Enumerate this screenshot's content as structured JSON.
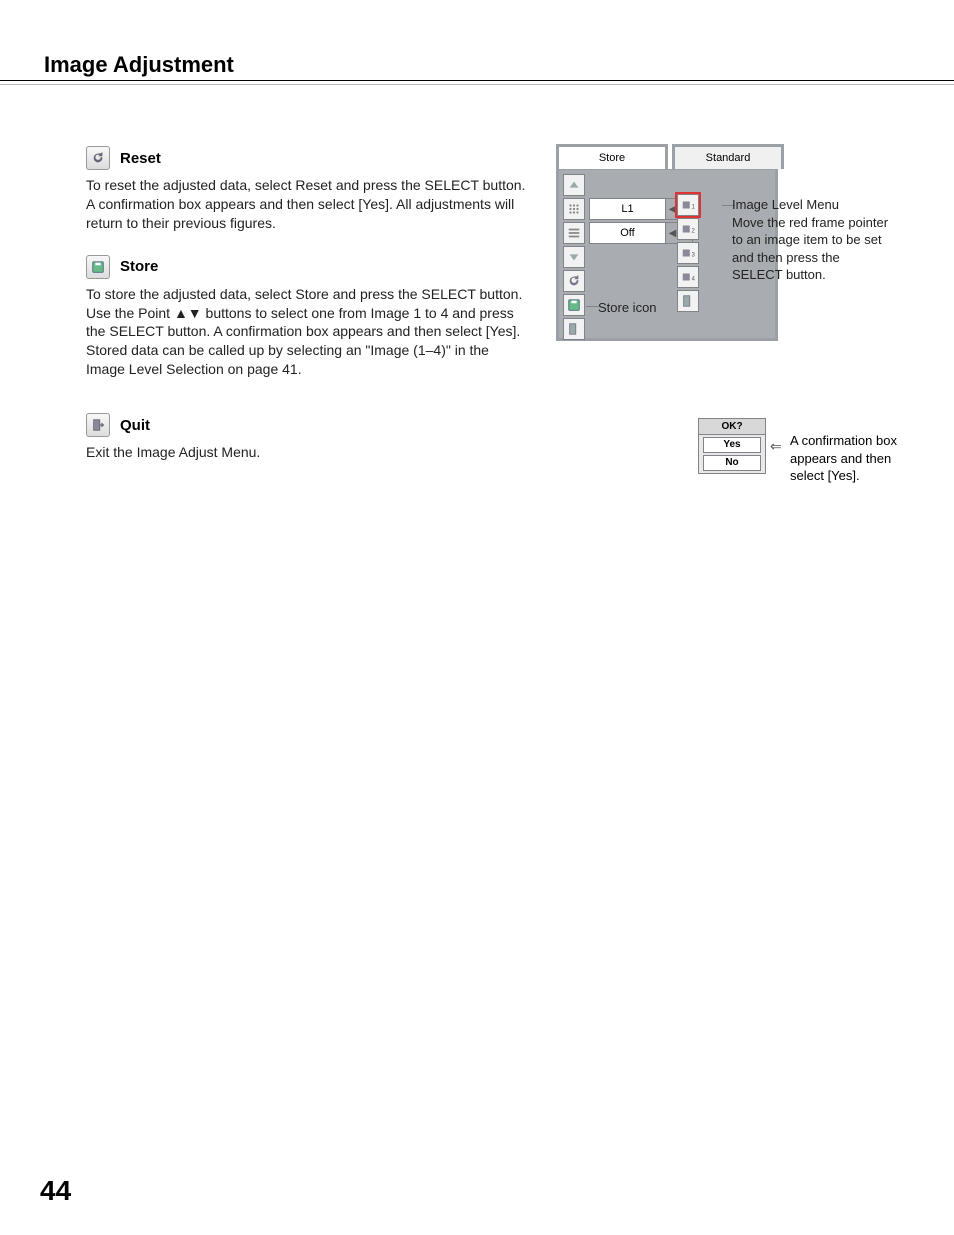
{
  "page": {
    "title": "Image Adjustment",
    "number": "44"
  },
  "sections": {
    "reset": {
      "title": "Reset",
      "body": "To reset the adjusted data, select Reset and press the SELECT button. A confirmation box appears and then select [Yes]. All adjustments will return to their previous figures."
    },
    "store": {
      "title": "Store",
      "body_before": "To store the adjusted data, select Store and press the SELECT button. Use the Point ",
      "body_after": " buttons to select one from Image 1 to 4 and press the SELECT button. A confirmation box appears and then select [Yes]. Stored data can be called up by selecting an \"Image (1–4)\" in the Image Level Selection on page 41."
    },
    "quit": {
      "title": "Quit",
      "body": "Exit the Image Adjust Menu."
    }
  },
  "figure_store": {
    "tab_primary": "Store",
    "tab_secondary": "Standard",
    "row1_value": "L1",
    "row2_value": "Off",
    "left_icons": [
      "up",
      "dots",
      "hbar",
      "down",
      "reset",
      "store",
      "quit"
    ],
    "right_icons": [
      "i1",
      "i2",
      "i3",
      "i4",
      "quit"
    ],
    "callouts": {
      "image_level_menu": "Image Level Menu\nMove the red frame pointer to an image item to be set and then press the SELECT button.",
      "store_icon": "Store icon"
    }
  },
  "confirm": {
    "header": "OK?",
    "yes": "Yes",
    "no": "No",
    "caption": "A confirmation box appears and then select [Yes]."
  },
  "colors": {
    "border": "#9aa0a6",
    "panel_bg": "#a9adb1",
    "cell_bg": "#f2f2f2"
  }
}
